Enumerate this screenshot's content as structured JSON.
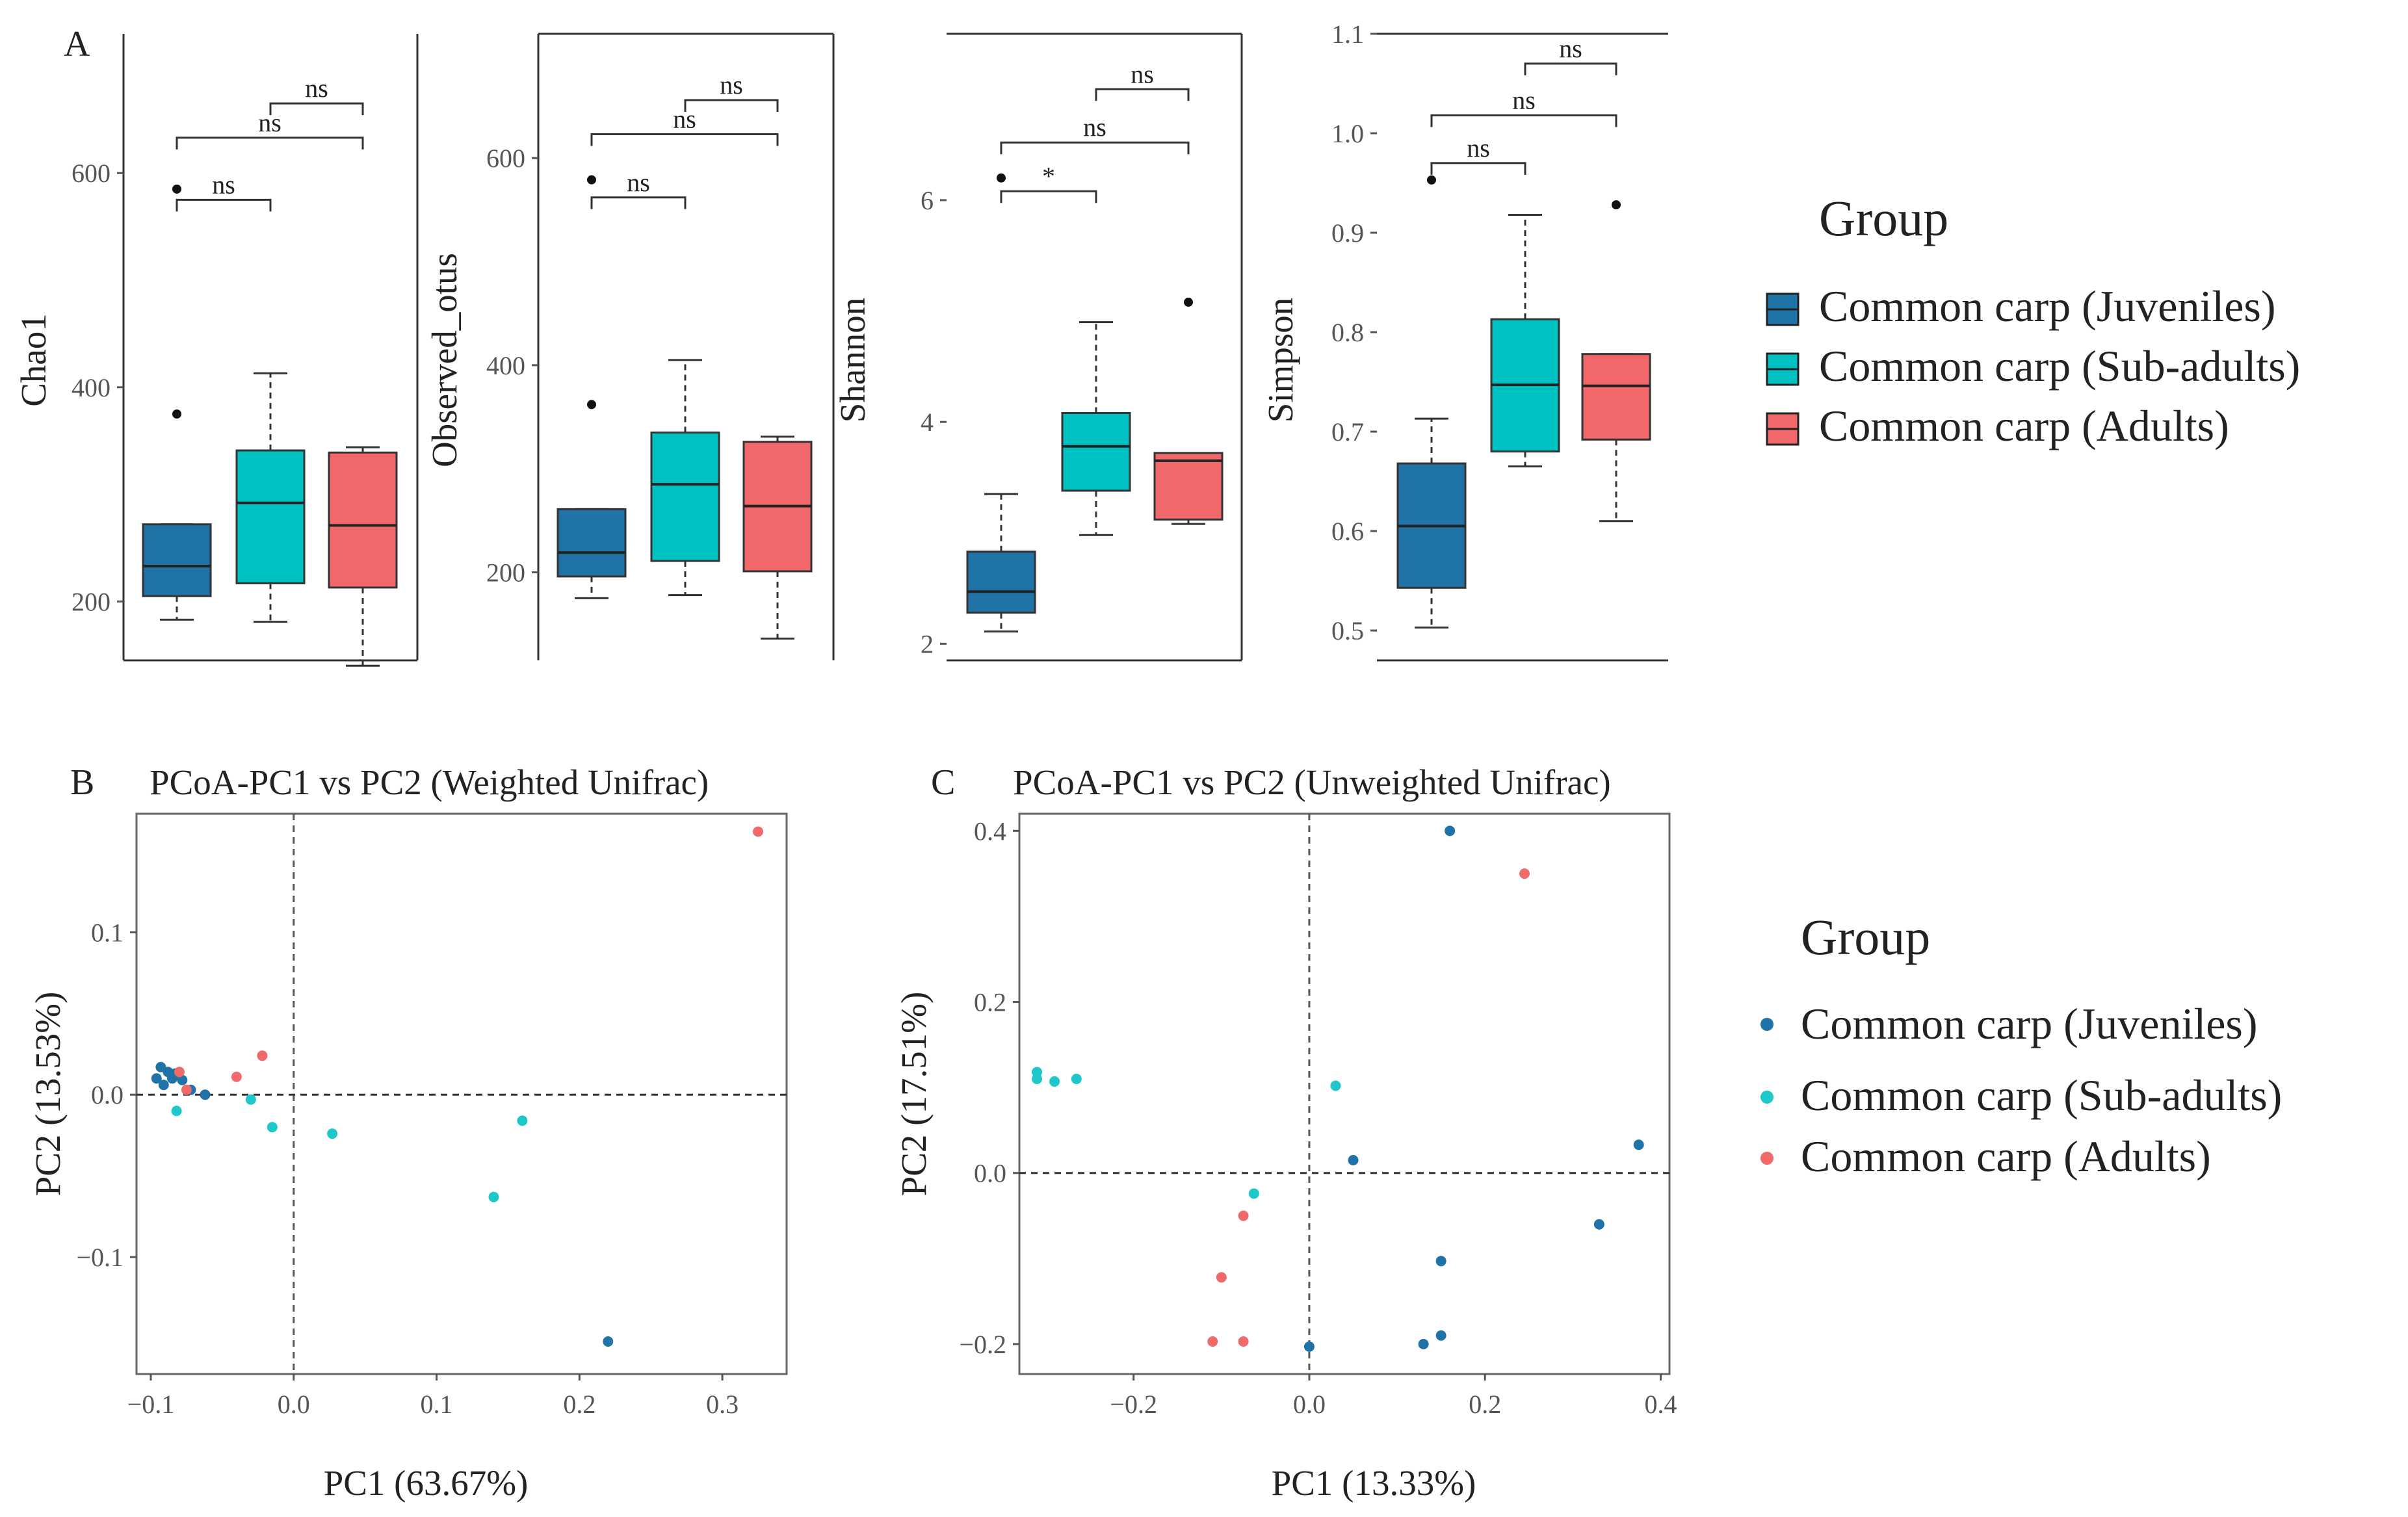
{
  "colors": {
    "juveniles": "#1f73a6",
    "subadults": "#00c1c1",
    "adults": "#f2686a",
    "juveniles_pt": "#1f73a6",
    "subadults_pt": "#1ec8c8",
    "adults_pt": "#f06a6b"
  },
  "panel_labels": {
    "a": "A",
    "b": "B",
    "c": "C"
  },
  "legend_a": {
    "title": "Group",
    "items": [
      "Common carp (Juveniles)",
      "Common carp (Sub-adults)",
      "Common carp (Adults)"
    ]
  },
  "legend_bc": {
    "title": "Group",
    "items": [
      "Common carp (Juveniles)",
      "Common carp (Sub-adults)",
      "Common carp (Adults)"
    ]
  },
  "chart_data": [
    {
      "type": "box",
      "id": "chao1",
      "ylabel": "Chao1",
      "ylim": [
        145,
        730
      ],
      "yticks": [
        200,
        400,
        600
      ],
      "yticklabels": [
        "200",
        "400",
        "600"
      ],
      "groups": [
        "Common carp (Juveniles)",
        "Common carp (Sub-adults)",
        "Common carp (Adults)"
      ],
      "boxes": [
        {
          "q1": 205,
          "median": 233,
          "q3": 272,
          "wlow": 183,
          "whigh": 272,
          "outliers": [
            375,
            585
          ]
        },
        {
          "q1": 217,
          "median": 292,
          "q3": 341,
          "wlow": 181,
          "whigh": 413,
          "outliers": []
        },
        {
          "q1": 213,
          "median": 271,
          "q3": 339,
          "wlow": 140,
          "whigh": 344,
          "outliers": []
        }
      ],
      "comparisons": [
        {
          "from": 1,
          "to": 2,
          "label": "ns",
          "y": 665
        },
        {
          "from": 0,
          "to": 2,
          "label": "ns",
          "y": 633
        },
        {
          "from": 0,
          "to": 1,
          "label": "ns",
          "y": 575
        }
      ]
    },
    {
      "type": "box",
      "id": "observed_otus",
      "ylabel": "Observed_otus",
      "ylim": [
        115,
        720
      ],
      "yticks": [
        200,
        400,
        600
      ],
      "yticklabels": [
        "200",
        "400",
        "600"
      ],
      "groups": [
        "Common carp (Juveniles)",
        "Common carp (Sub-adults)",
        "Common carp (Adults)"
      ],
      "boxes": [
        {
          "q1": 196,
          "median": 219,
          "q3": 261,
          "wlow": 175,
          "whigh": 261,
          "outliers": [
            362,
            579
          ]
        },
        {
          "q1": 211,
          "median": 285,
          "q3": 335,
          "wlow": 178,
          "whigh": 405,
          "outliers": []
        },
        {
          "q1": 201,
          "median": 264,
          "q3": 326,
          "wlow": 136,
          "whigh": 331,
          "outliers": []
        }
      ],
      "comparisons": [
        {
          "from": 1,
          "to": 2,
          "label": "ns",
          "y": 656
        },
        {
          "from": 0,
          "to": 2,
          "label": "ns",
          "y": 623
        },
        {
          "from": 0,
          "to": 1,
          "label": "ns",
          "y": 562
        }
      ]
    },
    {
      "type": "box",
      "id": "shannon",
      "ylabel": "Shannon",
      "ylim": [
        1.85,
        7.5
      ],
      "yticks": [
        2,
        4,
        6
      ],
      "yticklabels": [
        "2",
        "4",
        "6"
      ],
      "groups": [
        "Common carp (Juveniles)",
        "Common carp (Sub-adults)",
        "Common carp (Adults)"
      ],
      "boxes": [
        {
          "q1": 2.28,
          "median": 2.47,
          "q3": 2.83,
          "wlow": 2.11,
          "whigh": 3.35,
          "outliers": [
            6.2
          ]
        },
        {
          "q1": 3.38,
          "median": 3.78,
          "q3": 4.08,
          "wlow": 2.98,
          "whigh": 4.9,
          "outliers": []
        },
        {
          "q1": 3.12,
          "median": 3.65,
          "q3": 3.72,
          "wlow": 3.08,
          "whigh": 3.72,
          "outliers": [
            5.08
          ]
        }
      ],
      "comparisons": [
        {
          "from": 1,
          "to": 2,
          "label": "ns",
          "y": 7.0
        },
        {
          "from": 0,
          "to": 2,
          "label": "ns",
          "y": 6.52
        },
        {
          "from": 0,
          "to": 1,
          "label": "*",
          "y": 6.08
        }
      ]
    },
    {
      "type": "box",
      "id": "simpson",
      "ylabel": "Simpson",
      "ylim": [
        0.47,
        1.1
      ],
      "yticks": [
        0.5,
        0.6,
        0.7,
        0.8,
        0.9,
        1.0,
        1.1
      ],
      "yticklabels": [
        "0.5",
        "0.6",
        "0.7",
        "0.8",
        "0.9",
        "1.0",
        "1.1"
      ],
      "groups": [
        "Common carp (Juveniles)",
        "Common carp (Sub-adults)",
        "Common carp (Adults)"
      ],
      "boxes": [
        {
          "q1": 0.543,
          "median": 0.605,
          "q3": 0.668,
          "wlow": 0.503,
          "whigh": 0.713,
          "outliers": [
            0.953
          ]
        },
        {
          "q1": 0.68,
          "median": 0.747,
          "q3": 0.813,
          "wlow": 0.665,
          "whigh": 0.918,
          "outliers": []
        },
        {
          "q1": 0.692,
          "median": 0.746,
          "q3": 0.778,
          "wlow": 0.61,
          "whigh": 0.778,
          "outliers": [
            0.928
          ]
        }
      ],
      "comparisons": [
        {
          "from": 1,
          "to": 2,
          "label": "ns",
          "y": 1.07
        },
        {
          "from": 0,
          "to": 2,
          "label": "ns",
          "y": 1.018
        },
        {
          "from": 0,
          "to": 1,
          "label": "ns",
          "y": 0.97
        }
      ]
    },
    {
      "type": "scatter",
      "id": "pcoa_weighted",
      "title": "PCoA-PC1 vs PC2 (Weighted Unifrac)",
      "xlabel": "PC1 (63.67%)",
      "ylabel": "PC2 (13.53%)",
      "xlim": [
        -0.11,
        0.345
      ],
      "ylim": [
        -0.172,
        0.173
      ],
      "xticks": [
        -0.1,
        0.0,
        0.1,
        0.2,
        0.3
      ],
      "xticklabels": [
        "−0.1",
        "0.0",
        "0.1",
        "0.2",
        "0.3"
      ],
      "yticks": [
        -0.1,
        0.0,
        0.1
      ],
      "yticklabels": [
        "−0.1",
        "0.0",
        "0.1"
      ],
      "series": [
        {
          "name": "Common carp (Juveniles)",
          "points": [
            [
              -0.093,
              0.017
            ],
            [
              -0.088,
              0.014
            ],
            [
              -0.096,
              0.01
            ],
            [
              -0.091,
              0.006
            ],
            [
              -0.085,
              0.01
            ],
            [
              -0.083,
              0.013
            ],
            [
              -0.078,
              0.009
            ],
            [
              -0.072,
              0.003
            ],
            [
              -0.062,
              0.0
            ],
            [
              0.22,
              -0.152
            ]
          ]
        },
        {
          "name": "Common carp (Sub-adults)",
          "points": [
            [
              -0.082,
              -0.01
            ],
            [
              -0.03,
              -0.003
            ],
            [
              -0.015,
              -0.02
            ],
            [
              0.027,
              -0.024
            ],
            [
              0.14,
              -0.063
            ],
            [
              0.16,
              -0.016
            ]
          ]
        },
        {
          "name": "Common carp (Adults)",
          "points": [
            [
              -0.08,
              0.014
            ],
            [
              -0.075,
              0.003
            ],
            [
              -0.04,
              0.011
            ],
            [
              -0.022,
              0.024
            ],
            [
              0.325,
              0.162
            ]
          ]
        }
      ]
    },
    {
      "type": "scatter",
      "id": "pcoa_unweighted",
      "title": "PCoA-PC1 vs PC2 (Unweighted Unifrac)",
      "xlabel": "PC1 (13.33%)",
      "ylabel": "PC2 (17.51%)",
      "xlim": [
        -0.33,
        0.41
      ],
      "ylim": [
        -0.235,
        0.42
      ],
      "xticks": [
        -0.2,
        0.0,
        0.2,
        0.4
      ],
      "xticklabels": [
        "−0.2",
        "0.0",
        "0.2",
        "0.4"
      ],
      "yticks": [
        -0.2,
        0.0,
        0.2,
        0.4
      ],
      "yticklabels": [
        "−0.2",
        "0.0",
        "0.2",
        "0.4"
      ],
      "series": [
        {
          "name": "Common carp (Juveniles)",
          "points": [
            [
              0.16,
              0.4
            ],
            [
              0.05,
              0.015
            ],
            [
              0.375,
              0.033
            ],
            [
              0.33,
              -0.06
            ],
            [
              0.15,
              -0.103
            ],
            [
              0.15,
              -0.19
            ],
            [
              0.13,
              -0.2
            ],
            [
              0.0,
              -0.203
            ]
          ]
        },
        {
          "name": "Common carp (Sub-adults)",
          "points": [
            [
              -0.31,
              0.118
            ],
            [
              -0.31,
              0.11
            ],
            [
              -0.29,
              0.107
            ],
            [
              -0.265,
              0.11
            ],
            [
              0.03,
              0.102
            ],
            [
              -0.063,
              -0.024
            ]
          ]
        },
        {
          "name": "Common carp (Adults)",
          "points": [
            [
              0.245,
              0.35
            ],
            [
              -0.075,
              -0.05
            ],
            [
              -0.1,
              -0.122
            ],
            [
              -0.11,
              -0.197
            ],
            [
              -0.075,
              -0.197
            ]
          ]
        }
      ]
    }
  ]
}
